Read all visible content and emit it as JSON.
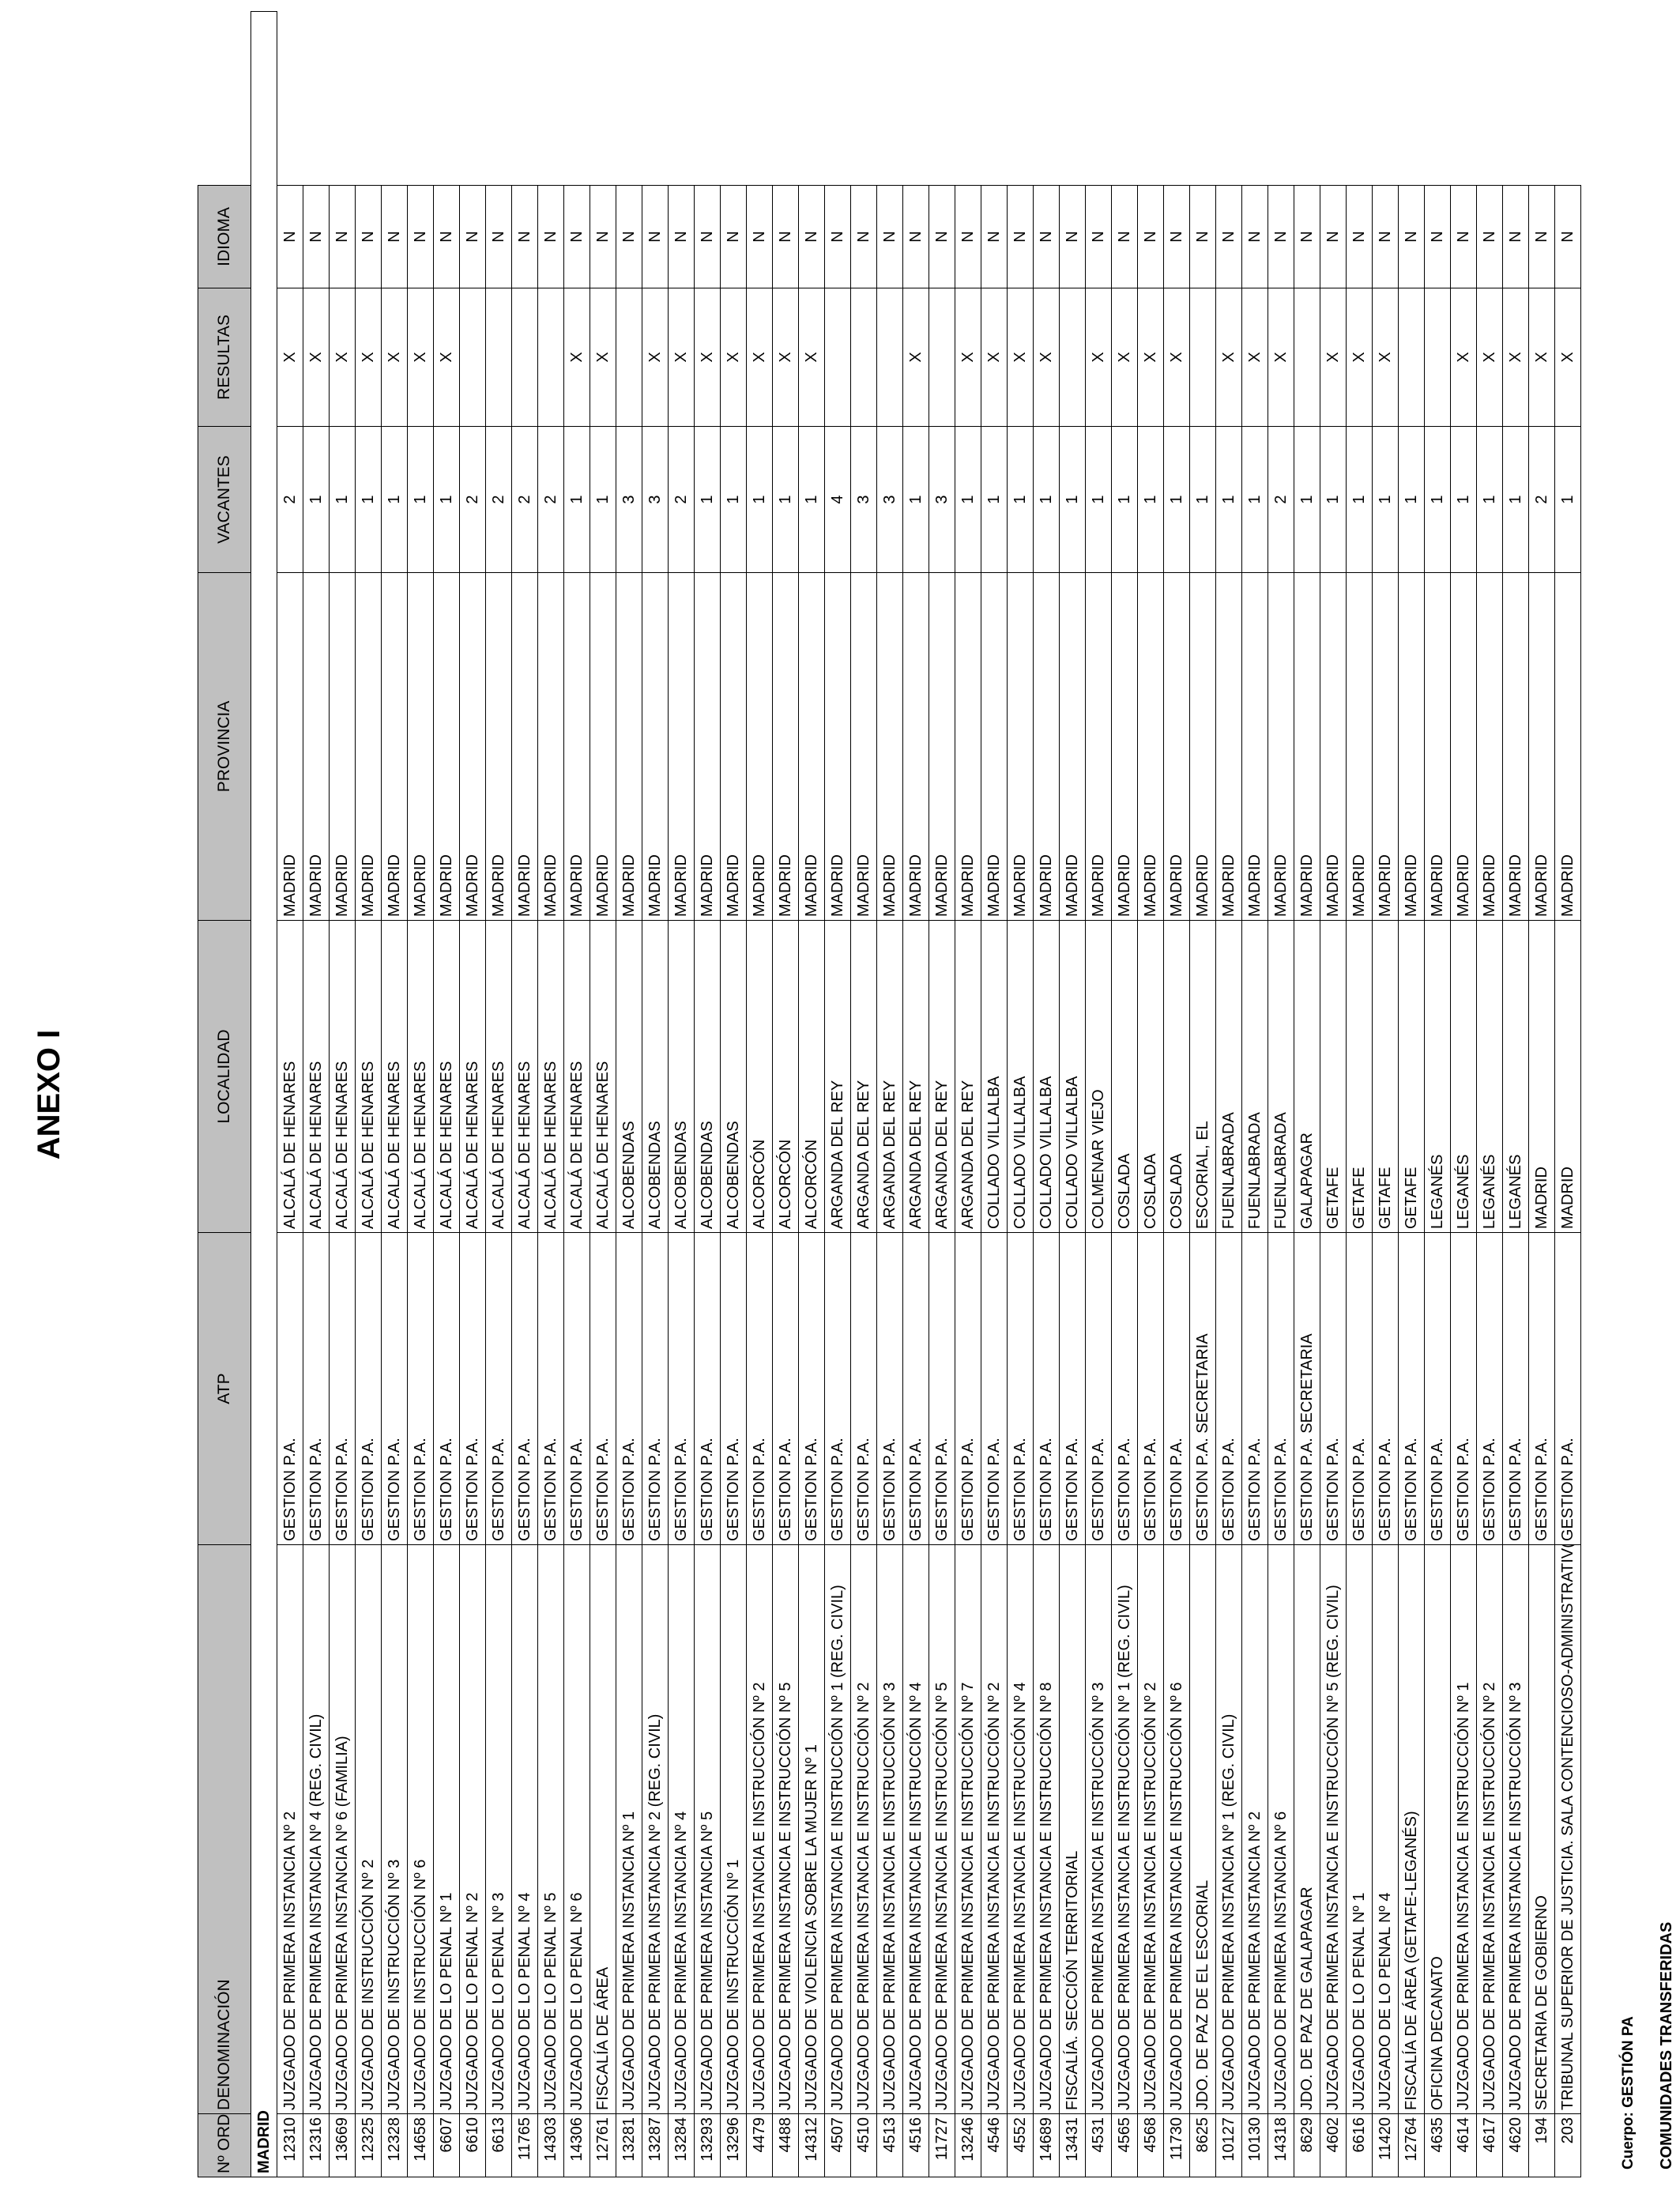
{
  "title": "ANEXO I",
  "cuerpo": "Cuerpo: GESTIÓN PA",
  "comunidades": "COMUNIDADES TRANSFERIDAS",
  "headers": {
    "orden": "Nº ORDEN",
    "denominacion": "DENOMINACIÓN",
    "atp": "ATP",
    "localidad": "LOCALIDAD",
    "provincia": "PROVINCIA",
    "vacantes": "VACANTES",
    "resultas": "RESULTAS",
    "idioma": "IDIOMA"
  },
  "group": "MADRID",
  "rows": [
    {
      "orden": "12310",
      "denominacion": "JUZGADO DE PRIMERA INSTANCIA Nº 2",
      "atp": "GESTION P.A.",
      "localidad": "ALCALÁ DE HENARES",
      "provincia": "MADRID",
      "vacantes": "2",
      "resultas": "X",
      "idioma": "N"
    },
    {
      "orden": "12316",
      "denominacion": "JUZGADO DE PRIMERA INSTANCIA Nº 4 (REG. CIVIL)",
      "atp": "GESTION P.A.",
      "localidad": "ALCALÁ DE HENARES",
      "provincia": "MADRID",
      "vacantes": "1",
      "resultas": "X",
      "idioma": "N"
    },
    {
      "orden": "13669",
      "denominacion": "JUZGADO DE PRIMERA INSTANCIA Nº 6 (FAMILIA)",
      "atp": "GESTION P.A.",
      "localidad": "ALCALÁ DE HENARES",
      "provincia": "MADRID",
      "vacantes": "1",
      "resultas": "X",
      "idioma": "N"
    },
    {
      "orden": "12325",
      "denominacion": "JUZGADO DE INSTRUCCIÓN Nº 2",
      "atp": "GESTION P.A.",
      "localidad": "ALCALÁ DE HENARES",
      "provincia": "MADRID",
      "vacantes": "1",
      "resultas": "X",
      "idioma": "N"
    },
    {
      "orden": "12328",
      "denominacion": "JUZGADO DE INSTRUCCIÓN Nº 3",
      "atp": "GESTION P.A.",
      "localidad": "ALCALÁ DE HENARES",
      "provincia": "MADRID",
      "vacantes": "1",
      "resultas": "X",
      "idioma": "N"
    },
    {
      "orden": "14658",
      "denominacion": "JUZGADO DE INSTRUCCIÓN Nº 6",
      "atp": "GESTION P.A.",
      "localidad": "ALCALÁ DE HENARES",
      "provincia": "MADRID",
      "vacantes": "1",
      "resultas": "X",
      "idioma": "N"
    },
    {
      "orden": "6607",
      "denominacion": "JUZGADO DE LO PENAL Nº 1",
      "atp": "GESTION P.A.",
      "localidad": "ALCALÁ DE HENARES",
      "provincia": "MADRID",
      "vacantes": "1",
      "resultas": "X",
      "idioma": "N"
    },
    {
      "orden": "6610",
      "denominacion": "JUZGADO DE LO PENAL Nº 2",
      "atp": "GESTION P.A.",
      "localidad": "ALCALÁ DE HENARES",
      "provincia": "MADRID",
      "vacantes": "2",
      "resultas": "",
      "idioma": "N"
    },
    {
      "orden": "6613",
      "denominacion": "JUZGADO DE LO PENAL Nº 3",
      "atp": "GESTION P.A.",
      "localidad": "ALCALÁ DE HENARES",
      "provincia": "MADRID",
      "vacantes": "2",
      "resultas": "",
      "idioma": "N"
    },
    {
      "orden": "11765",
      "denominacion": "JUZGADO DE LO PENAL Nº 4",
      "atp": "GESTION P.A.",
      "localidad": "ALCALÁ DE HENARES",
      "provincia": "MADRID",
      "vacantes": "2",
      "resultas": "",
      "idioma": "N"
    },
    {
      "orden": "14303",
      "denominacion": "JUZGADO DE LO PENAL Nº 5",
      "atp": "GESTION P.A.",
      "localidad": "ALCALÁ DE HENARES",
      "provincia": "MADRID",
      "vacantes": "2",
      "resultas": "",
      "idioma": "N"
    },
    {
      "orden": "14306",
      "denominacion": "JUZGADO DE LO PENAL Nº 6",
      "atp": "GESTION P.A.",
      "localidad": "ALCALÁ DE HENARES",
      "provincia": "MADRID",
      "vacantes": "1",
      "resultas": "X",
      "idioma": "N"
    },
    {
      "orden": "12761",
      "denominacion": "FISCALÍA DE ÁREA",
      "atp": "GESTION P.A.",
      "localidad": "ALCALÁ DE HENARES",
      "provincia": "MADRID",
      "vacantes": "1",
      "resultas": "X",
      "idioma": "N"
    },
    {
      "orden": "13281",
      "denominacion": "JUZGADO DE PRIMERA INSTANCIA Nº 1",
      "atp": "GESTION P.A.",
      "localidad": "ALCOBENDAS",
      "provincia": "MADRID",
      "vacantes": "3",
      "resultas": "",
      "idioma": "N"
    },
    {
      "orden": "13287",
      "denominacion": "JUZGADO DE PRIMERA INSTANCIA Nº 2 (REG. CIVIL)",
      "atp": "GESTION P.A.",
      "localidad": "ALCOBENDAS",
      "provincia": "MADRID",
      "vacantes": "3",
      "resultas": "X",
      "idioma": "N"
    },
    {
      "orden": "13284",
      "denominacion": "JUZGADO DE PRIMERA INSTANCIA Nº 4",
      "atp": "GESTION P.A.",
      "localidad": "ALCOBENDAS",
      "provincia": "MADRID",
      "vacantes": "2",
      "resultas": "X",
      "idioma": "N"
    },
    {
      "orden": "13293",
      "denominacion": "JUZGADO DE PRIMERA INSTANCIA Nº 5",
      "atp": "GESTION P.A.",
      "localidad": "ALCOBENDAS",
      "provincia": "MADRID",
      "vacantes": "1",
      "resultas": "X",
      "idioma": "N"
    },
    {
      "orden": "13296",
      "denominacion": "JUZGADO DE INSTRUCCIÓN Nº 1",
      "atp": "GESTION P.A.",
      "localidad": "ALCOBENDAS",
      "provincia": "MADRID",
      "vacantes": "1",
      "resultas": "X",
      "idioma": "N"
    },
    {
      "orden": "4479",
      "denominacion": "JUZGADO DE PRIMERA INSTANCIA E INSTRUCCIÓN Nº 2",
      "atp": "GESTION P.A.",
      "localidad": "ALCORCÓN",
      "provincia": "MADRID",
      "vacantes": "1",
      "resultas": "X",
      "idioma": "N"
    },
    {
      "orden": "4488",
      "denominacion": "JUZGADO DE PRIMERA INSTANCIA E INSTRUCCIÓN Nº 5",
      "atp": "GESTION P.A.",
      "localidad": "ALCORCÓN",
      "provincia": "MADRID",
      "vacantes": "1",
      "resultas": "X",
      "idioma": "N"
    },
    {
      "orden": "14312",
      "denominacion": "JUZGADO DE VIOLENCIA SOBRE LA MUJER Nº 1",
      "atp": "GESTION P.A.",
      "localidad": "ALCORCÓN",
      "provincia": "MADRID",
      "vacantes": "1",
      "resultas": "X",
      "idioma": "N"
    },
    {
      "orden": "4507",
      "denominacion": "JUZGADO DE PRIMERA INSTANCIA E INSTRUCCIÓN Nº 1 (REG. CIVIL)",
      "atp": "GESTION P.A.",
      "localidad": "ARGANDA DEL REY",
      "provincia": "MADRID",
      "vacantes": "4",
      "resultas": "",
      "idioma": "N"
    },
    {
      "orden": "4510",
      "denominacion": "JUZGADO DE PRIMERA INSTANCIA E INSTRUCCIÓN Nº 2",
      "atp": "GESTION P.A.",
      "localidad": "ARGANDA DEL REY",
      "provincia": "MADRID",
      "vacantes": "3",
      "resultas": "",
      "idioma": "N"
    },
    {
      "orden": "4513",
      "denominacion": "JUZGADO DE PRIMERA INSTANCIA E INSTRUCCIÓN Nº 3",
      "atp": "GESTION P.A.",
      "localidad": "ARGANDA DEL REY",
      "provincia": "MADRID",
      "vacantes": "3",
      "resultas": "",
      "idioma": "N"
    },
    {
      "orden": "4516",
      "denominacion": "JUZGADO DE PRIMERA INSTANCIA E INSTRUCCIÓN Nº 4",
      "atp": "GESTION P.A.",
      "localidad": "ARGANDA DEL REY",
      "provincia": "MADRID",
      "vacantes": "1",
      "resultas": "X",
      "idioma": "N"
    },
    {
      "orden": "11727",
      "denominacion": "JUZGADO DE PRIMERA INSTANCIA E INSTRUCCIÓN Nº 5",
      "atp": "GESTION P.A.",
      "localidad": "ARGANDA DEL REY",
      "provincia": "MADRID",
      "vacantes": "3",
      "resultas": "",
      "idioma": "N"
    },
    {
      "orden": "13246",
      "denominacion": "JUZGADO DE PRIMERA INSTANCIA E INSTRUCCIÓN Nº 7",
      "atp": "GESTION P.A.",
      "localidad": "ARGANDA DEL REY",
      "provincia": "MADRID",
      "vacantes": "1",
      "resultas": "X",
      "idioma": "N"
    },
    {
      "orden": "4546",
      "denominacion": "JUZGADO DE PRIMERA INSTANCIA E INSTRUCCIÓN Nº 2",
      "atp": "GESTION P.A.",
      "localidad": "COLLADO VILLALBA",
      "provincia": "MADRID",
      "vacantes": "1",
      "resultas": "X",
      "idioma": "N"
    },
    {
      "orden": "4552",
      "denominacion": "JUZGADO DE PRIMERA INSTANCIA E INSTRUCCIÓN Nº 4",
      "atp": "GESTION P.A.",
      "localidad": "COLLADO VILLALBA",
      "provincia": "MADRID",
      "vacantes": "1",
      "resultas": "X",
      "idioma": "N"
    },
    {
      "orden": "14689",
      "denominacion": "JUZGADO DE PRIMERA INSTANCIA E INSTRUCCIÓN Nº 8",
      "atp": "GESTION P.A.",
      "localidad": "COLLADO VILLALBA",
      "provincia": "MADRID",
      "vacantes": "1",
      "resultas": "X",
      "idioma": "N"
    },
    {
      "orden": "13431",
      "denominacion": "FISCALÍA. SECCIÓN TERRITORIAL",
      "atp": "GESTION P.A.",
      "localidad": "COLLADO VILLALBA",
      "provincia": "MADRID",
      "vacantes": "1",
      "resultas": "",
      "idioma": "N"
    },
    {
      "orden": "4531",
      "denominacion": "JUZGADO DE PRIMERA INSTANCIA E INSTRUCCIÓN Nº 3",
      "atp": "GESTION P.A.",
      "localidad": "COLMENAR VIEJO",
      "provincia": "MADRID",
      "vacantes": "1",
      "resultas": "X",
      "idioma": "N"
    },
    {
      "orden": "4565",
      "denominacion": "JUZGADO DE PRIMERA INSTANCIA E INSTRUCCIÓN Nº 1 (REG. CIVIL)",
      "atp": "GESTION P.A.",
      "localidad": "COSLADA",
      "provincia": "MADRID",
      "vacantes": "1",
      "resultas": "X",
      "idioma": "N"
    },
    {
      "orden": "4568",
      "denominacion": "JUZGADO DE PRIMERA INSTANCIA E INSTRUCCIÓN Nº 2",
      "atp": "GESTION P.A.",
      "localidad": "COSLADA",
      "provincia": "MADRID",
      "vacantes": "1",
      "resultas": "X",
      "idioma": "N"
    },
    {
      "orden": "11730",
      "denominacion": "JUZGADO DE PRIMERA INSTANCIA E INSTRUCCIÓN Nº 6",
      "atp": "GESTION P.A.",
      "localidad": "COSLADA",
      "provincia": "MADRID",
      "vacantes": "1",
      "resultas": "X",
      "idioma": "N"
    },
    {
      "orden": "8625",
      "denominacion": "JDO. DE PAZ DE EL ESCORIAL",
      "atp": "GESTION P.A. SECRETARIA",
      "localidad": "ESCORIAL, EL",
      "provincia": "MADRID",
      "vacantes": "1",
      "resultas": "",
      "idioma": "N"
    },
    {
      "orden": "10127",
      "denominacion": "JUZGADO DE PRIMERA INSTANCIA Nº 1 (REG. CIVIL)",
      "atp": "GESTION P.A.",
      "localidad": "FUENLABRADA",
      "provincia": "MADRID",
      "vacantes": "1",
      "resultas": "X",
      "idioma": "N"
    },
    {
      "orden": "10130",
      "denominacion": "JUZGADO DE PRIMERA INSTANCIA Nº 2",
      "atp": "GESTION P.A.",
      "localidad": "FUENLABRADA",
      "provincia": "MADRID",
      "vacantes": "1",
      "resultas": "X",
      "idioma": "N"
    },
    {
      "orden": "14318",
      "denominacion": "JUZGADO DE PRIMERA INSTANCIA Nº 6",
      "atp": "GESTION P.A.",
      "localidad": "FUENLABRADA",
      "provincia": "MADRID",
      "vacantes": "2",
      "resultas": "X",
      "idioma": "N"
    },
    {
      "orden": "8629",
      "denominacion": "JDO. DE PAZ DE GALAPAGAR",
      "atp": "GESTION P.A. SECRETARIA",
      "localidad": "GALAPAGAR",
      "provincia": "MADRID",
      "vacantes": "1",
      "resultas": "",
      "idioma": "N"
    },
    {
      "orden": "4602",
      "denominacion": "JUZGADO DE PRIMERA INSTANCIA E INSTRUCCIÓN Nº 5 (REG. CIVIL)",
      "atp": "GESTION P.A.",
      "localidad": "GETAFE",
      "provincia": "MADRID",
      "vacantes": "1",
      "resultas": "X",
      "idioma": "N"
    },
    {
      "orden": "6616",
      "denominacion": "JUZGADO DE LO PENAL Nº 1",
      "atp": "GESTION P.A.",
      "localidad": "GETAFE",
      "provincia": "MADRID",
      "vacantes": "1",
      "resultas": "X",
      "idioma": "N"
    },
    {
      "orden": "11420",
      "denominacion": "JUZGADO DE LO PENAL Nº 4",
      "atp": "GESTION P.A.",
      "localidad": "GETAFE",
      "provincia": "MADRID",
      "vacantes": "1",
      "resultas": "X",
      "idioma": "N"
    },
    {
      "orden": "12764",
      "denominacion": "FISCALÍA DE ÁREA (GETAFE-LEGANÉS)",
      "atp": "GESTION P.A.",
      "localidad": "GETAFE",
      "provincia": "MADRID",
      "vacantes": "1",
      "resultas": "",
      "idioma": "N"
    },
    {
      "orden": "4635",
      "denominacion": "OFICINA DECANATO",
      "atp": "GESTION P.A.",
      "localidad": "LEGANÉS",
      "provincia": "MADRID",
      "vacantes": "1",
      "resultas": "",
      "idioma": "N"
    },
    {
      "orden": "4614",
      "denominacion": "JUZGADO DE PRIMERA INSTANCIA E INSTRUCCIÓN Nº 1",
      "atp": "GESTION P.A.",
      "localidad": "LEGANÉS",
      "provincia": "MADRID",
      "vacantes": "1",
      "resultas": "X",
      "idioma": "N"
    },
    {
      "orden": "4617",
      "denominacion": "JUZGADO DE PRIMERA INSTANCIA E INSTRUCCIÓN Nº 2",
      "atp": "GESTION P.A.",
      "localidad": "LEGANÉS",
      "provincia": "MADRID",
      "vacantes": "1",
      "resultas": "X",
      "idioma": "N"
    },
    {
      "orden": "4620",
      "denominacion": "JUZGADO DE PRIMERA INSTANCIA E INSTRUCCIÓN Nº 3",
      "atp": "GESTION P.A.",
      "localidad": "LEGANÉS",
      "provincia": "MADRID",
      "vacantes": "1",
      "resultas": "X",
      "idioma": "N"
    },
    {
      "orden": "194",
      "denominacion": "SECRETARIA DE GOBIERNO",
      "atp": "GESTION P.A.",
      "localidad": "MADRID",
      "provincia": "MADRID",
      "vacantes": "2",
      "resultas": "X",
      "idioma": "N"
    },
    {
      "orden": "203",
      "denominacion": "TRIBUNAL SUPERIOR DE JUSTICIA. SALA CONTENCIOSO-ADMINISTRATIV(",
      "atp": "GESTION P.A.",
      "localidad": "MADRID",
      "provincia": "MADRID",
      "vacantes": "1",
      "resultas": "X",
      "idioma": "N"
    }
  ]
}
